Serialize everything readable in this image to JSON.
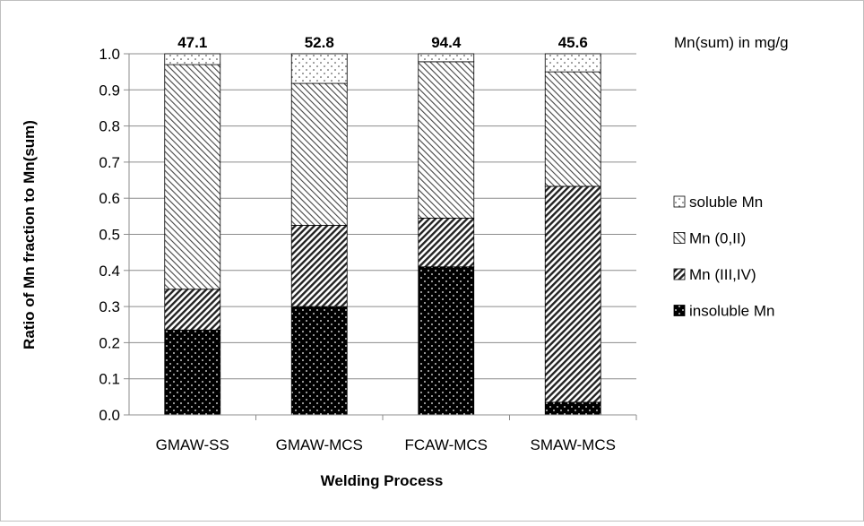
{
  "chart_data": {
    "type": "bar",
    "stacked": true,
    "xlabel": "Welding Process",
    "ylabel": "Ratio of Mn fraction to Mn(sum)",
    "ylim": [
      0,
      1.0
    ],
    "ytick_step": 0.1,
    "categories": [
      "GMAW-SS",
      "GMAW-MCS",
      "FCAW-MCS",
      "SMAW-MCS"
    ],
    "top_labels": [
      "47.1",
      "52.8",
      "94.4",
      "45.6"
    ],
    "top_labels_caption": "Mn(sum) in mg/g",
    "legend_position": "right",
    "grid": true,
    "series": [
      {
        "name": "insoluble Mn",
        "values": [
          0.235,
          0.3,
          0.41,
          0.035
        ],
        "pattern": "black-dots"
      },
      {
        "name": "Mn (III,IV)",
        "values": [
          0.113,
          0.225,
          0.135,
          0.598
        ],
        "pattern": "dense-diagonal"
      },
      {
        "name": "Mn (0,II)",
        "values": [
          0.622,
          0.393,
          0.433,
          0.317
        ],
        "pattern": "sparse-diagonal"
      },
      {
        "name": "soluble Mn",
        "values": [
          0.03,
          0.082,
          0.022,
          0.05
        ],
        "pattern": "white-dots"
      }
    ]
  }
}
